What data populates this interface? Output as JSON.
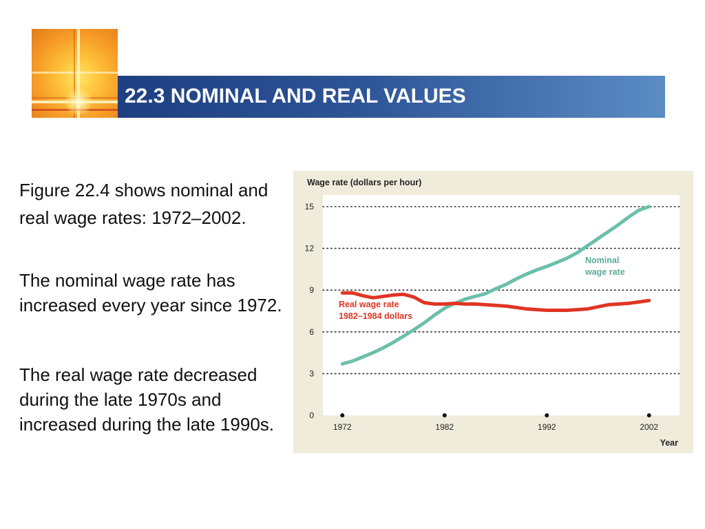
{
  "header": {
    "title": "22.3 NOMINAL AND REAL VALUES"
  },
  "body": {
    "paragraphs": [
      "Figure 22.4 shows nominal and real wage rates: 1972–2002.",
      "The nominal wage rate has increased every year since 1972.",
      "The real wage rate decreased during the late 1970s and increased during the late 1990s."
    ]
  },
  "colors": {
    "title_bar_start": "#1e3f82",
    "title_bar_end": "#5b8cc4",
    "chart_background": "#f0ecdb",
    "plot_background": "#ffffff",
    "nominal_series": "#6bbfab",
    "real_series": "#e03524"
  },
  "chart_data": {
    "type": "line",
    "ylabel": "Wage rate (dollars per hour)",
    "xlabel": "Year",
    "ylim": [
      0,
      15
    ],
    "yticks": [
      0,
      3,
      6,
      9,
      12,
      15
    ],
    "xlim": [
      1972,
      2002
    ],
    "xticks": [
      1972,
      1982,
      1992,
      2002
    ],
    "grid": "horizontal dotted",
    "series": [
      {
        "name": "Nominal wage rate",
        "label_lines": [
          "Nominal",
          "wage rate"
        ],
        "x": [
          1972,
          1973,
          1974,
          1975,
          1976,
          1977,
          1978,
          1979,
          1980,
          1981,
          1982,
          1983,
          1984,
          1985,
          1986,
          1987,
          1988,
          1989,
          1990,
          1991,
          1992,
          1993,
          1994,
          1995,
          1996,
          1997,
          1998,
          1999,
          2000,
          2001,
          2002
        ],
        "values": [
          3.7,
          3.9,
          4.2,
          4.5,
          4.85,
          5.25,
          5.7,
          6.15,
          6.65,
          7.2,
          7.7,
          8.05,
          8.35,
          8.55,
          8.75,
          9.1,
          9.4,
          9.8,
          10.15,
          10.45,
          10.7,
          11.0,
          11.3,
          11.7,
          12.2,
          12.7,
          13.2,
          13.7,
          14.25,
          14.75,
          15.0
        ],
        "color": "#6bbfab"
      },
      {
        "name": "Real wage rate 1982–1984 dollars",
        "label_lines": [
          "Real wage rate",
          "1982–1984 dollars"
        ],
        "x": [
          1972,
          1973,
          1974,
          1975,
          1976,
          1977,
          1978,
          1979,
          1980,
          1981,
          1982,
          1983,
          1984,
          1985,
          1986,
          1987,
          1988,
          1989,
          1990,
          1991,
          1992,
          1993,
          1994,
          1995,
          1996,
          1997,
          1998,
          1999,
          2000,
          2001,
          2002
        ],
        "values": [
          8.8,
          8.8,
          8.6,
          8.45,
          8.55,
          8.65,
          8.7,
          8.5,
          8.1,
          8.0,
          8.0,
          8.05,
          8.0,
          8.0,
          7.95,
          7.9,
          7.85,
          7.75,
          7.65,
          7.6,
          7.55,
          7.55,
          7.55,
          7.6,
          7.65,
          7.8,
          7.95,
          8.0,
          8.05,
          8.15,
          8.25
        ],
        "color": "#e03524"
      }
    ]
  }
}
